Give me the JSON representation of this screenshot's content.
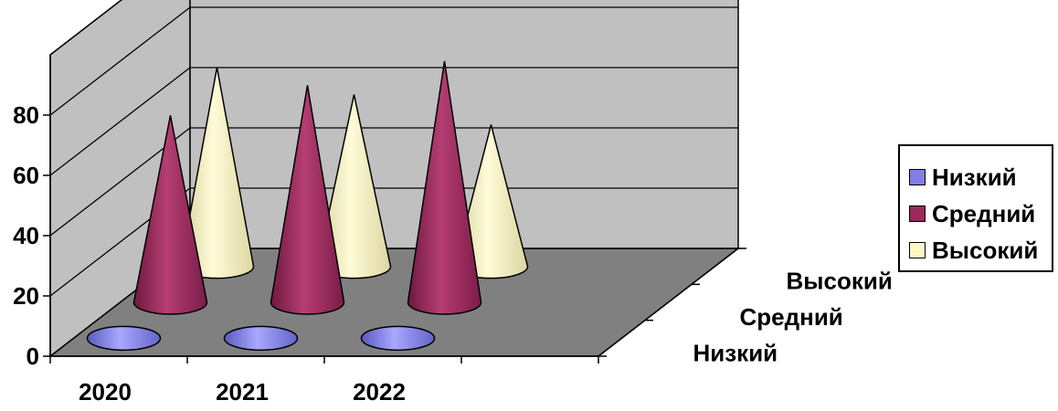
{
  "chart_data": {
    "type": "bar",
    "style": "3d-cone",
    "categories": [
      "2020",
      "2021",
      "2022"
    ],
    "depth_labels": [
      "Низкий",
      "Средний",
      "Высокий"
    ],
    "series": [
      {
        "name": "Низкий",
        "values": [
          0,
          0,
          0
        ],
        "color": "#8080e8"
      },
      {
        "name": "Средний",
        "values": [
          62,
          72,
          80
        ],
        "color": "#9b2a5c"
      },
      {
        "name": "Высокий",
        "values": [
          66,
          57,
          47
        ],
        "color": "#fbf7c4"
      }
    ],
    "yticks": [
      "0",
      "20",
      "40",
      "60",
      "80"
    ],
    "ylim": [
      0,
      100
    ],
    "grid": true,
    "legend_position": "right",
    "wall_color": "#c0c0c0",
    "floor_color": "#808080"
  }
}
